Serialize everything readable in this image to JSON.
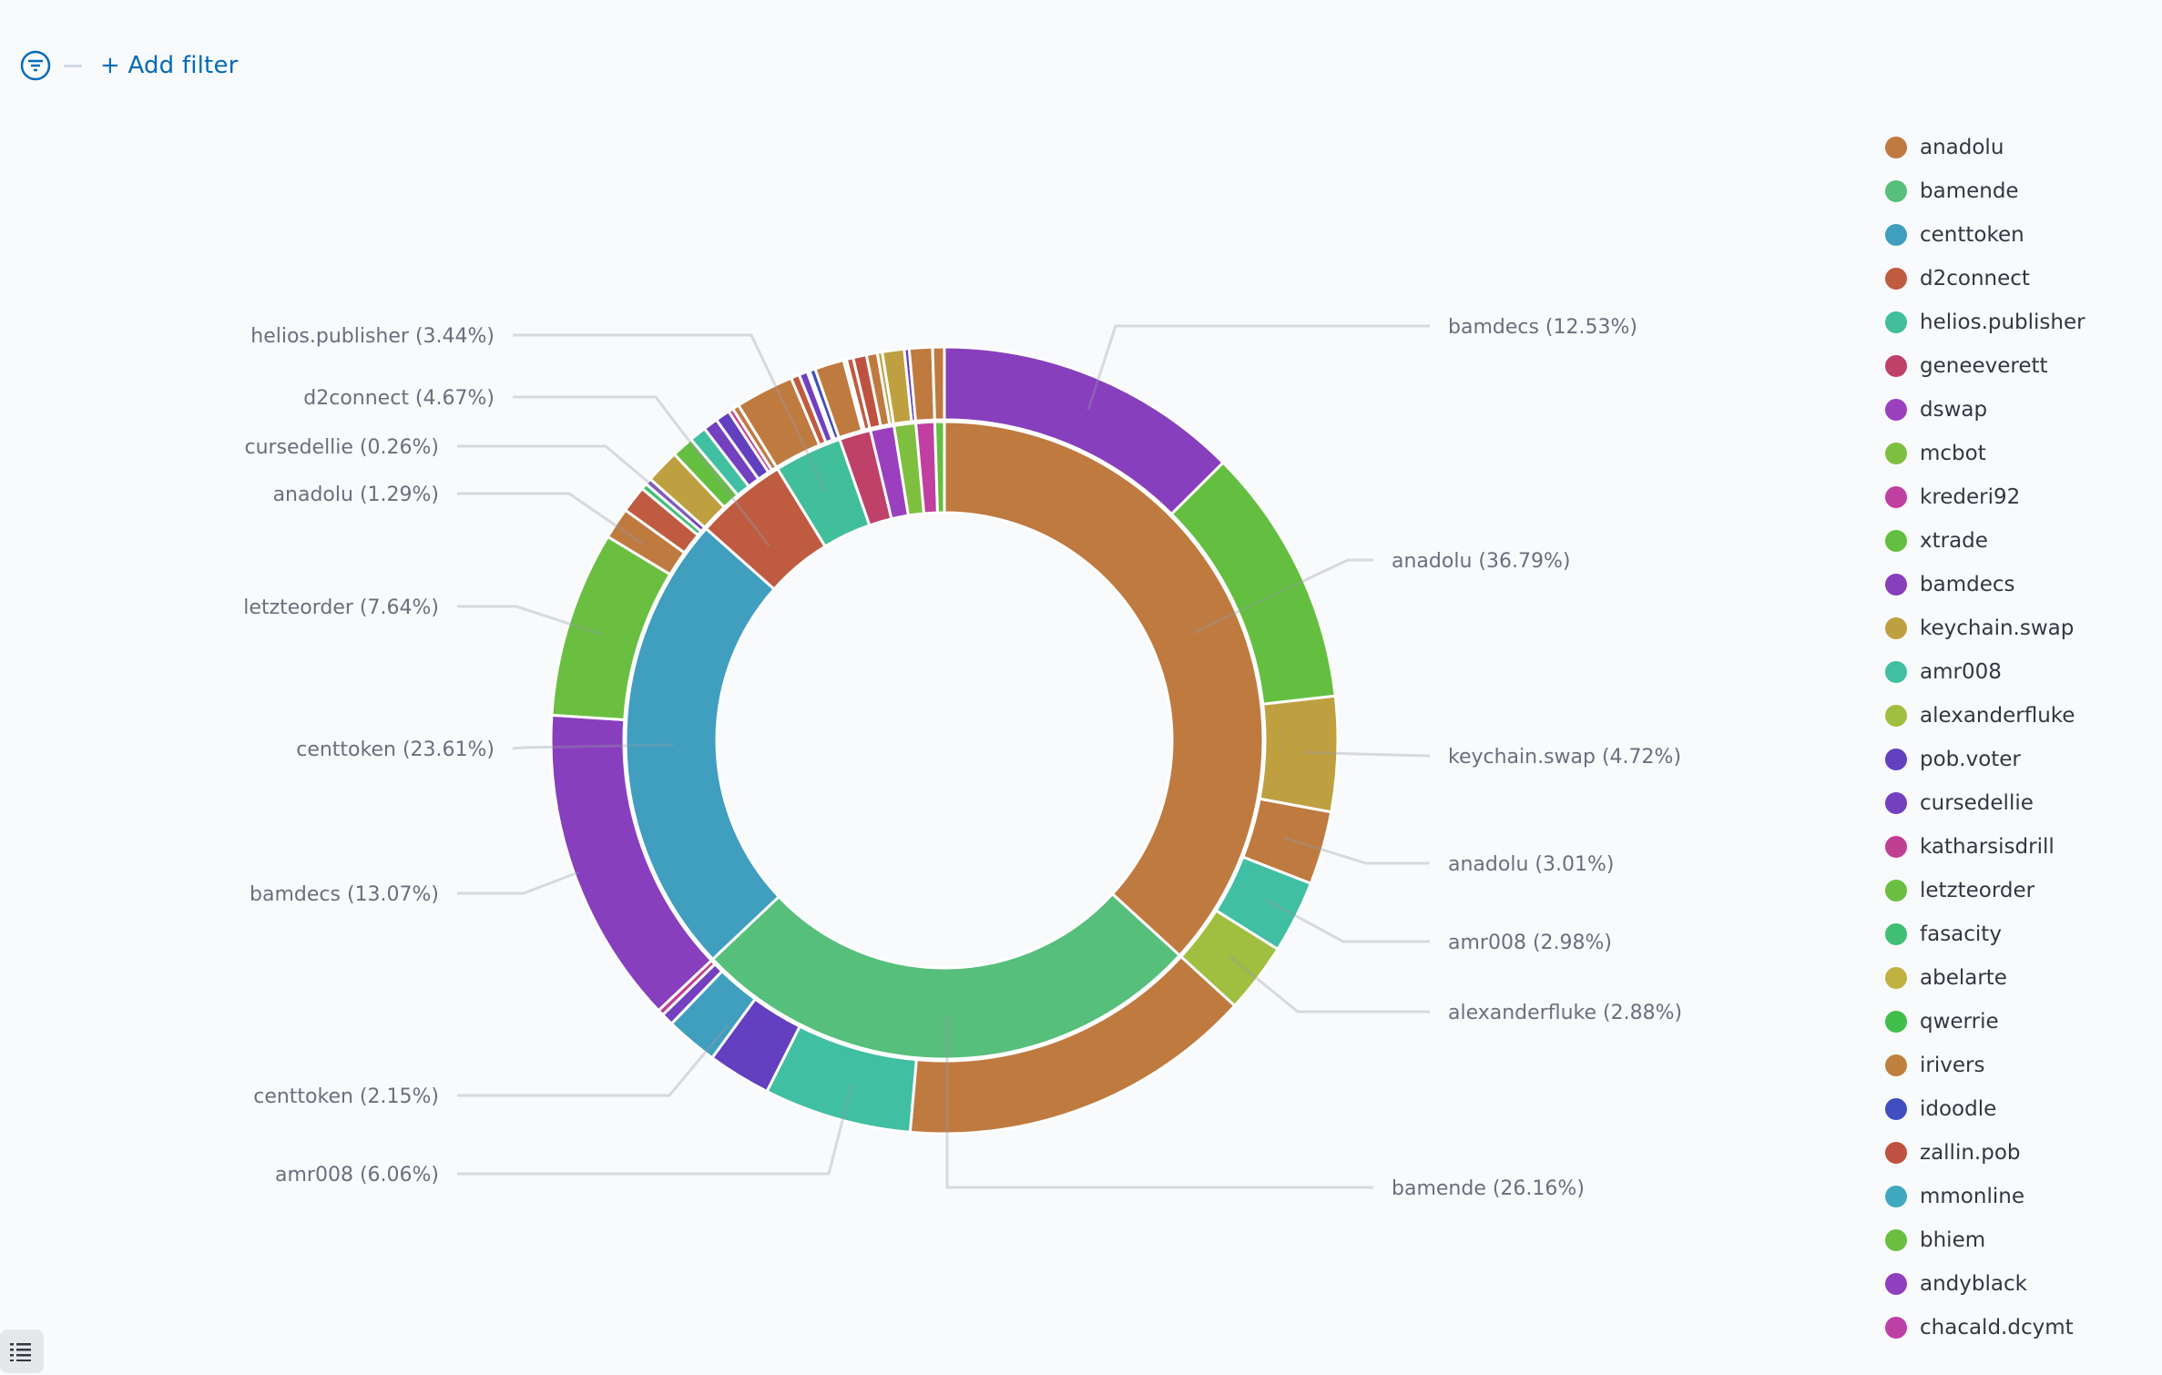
{
  "filter_bar": {
    "add_filter_label": "+ Add filter",
    "accent_color": "#006bb8"
  },
  "legend": {
    "items": [
      {
        "label": "anadolu",
        "color": "#bf7a40"
      },
      {
        "label": "bamende",
        "color": "#56bf7b"
      },
      {
        "label": "centtoken",
        "color": "#409ebf"
      },
      {
        "label": "d2connect",
        "color": "#bf5b40"
      },
      {
        "label": "helios.publisher",
        "color": "#40bf9a"
      },
      {
        "label": "geneeverett",
        "color": "#bf4069"
      },
      {
        "label": "dswap",
        "color": "#9a40bf"
      },
      {
        "label": "mcbot",
        "color": "#7fbf40"
      },
      {
        "label": "krederi92",
        "color": "#bf40a0"
      },
      {
        "label": "xtrade",
        "color": "#64bf40"
      },
      {
        "label": "bamdecs",
        "color": "#873fbd"
      },
      {
        "label": "keychain.swap",
        "color": "#bfa040"
      },
      {
        "label": "amr008",
        "color": "#40bfa2"
      },
      {
        "label": "alexanderfluke",
        "color": "#a0bf40"
      },
      {
        "label": "pob.voter",
        "color": "#6240bf"
      },
      {
        "label": "cursedellie",
        "color": "#7340bf"
      },
      {
        "label": "katharsisdrill",
        "color": "#bf4092"
      },
      {
        "label": "letzteorder",
        "color": "#6abf40"
      },
      {
        "label": "fasacity",
        "color": "#40bf75"
      },
      {
        "label": "abelarte",
        "color": "#bfb240"
      },
      {
        "label": "qwerrie",
        "color": "#40bf4a"
      },
      {
        "label": "irivers",
        "color": "#bf8040"
      },
      {
        "label": "idoodle",
        "color": "#404ebf"
      },
      {
        "label": "zallin.pob",
        "color": "#bf5140"
      },
      {
        "label": "mmonline",
        "color": "#40a9bf"
      },
      {
        "label": "bhiem",
        "color": "#6bbf40"
      },
      {
        "label": "andyblack",
        "color": "#8f40bf"
      },
      {
        "label": "chacald.dcymt",
        "color": "#bf40a4"
      }
    ]
  },
  "chart_data": {
    "type": "pie",
    "subtype": "nested-donut",
    "title": "",
    "legend_position": "right",
    "inner_ring": [
      {
        "label": "anadolu",
        "value": 36.79,
        "children": [
          {
            "label": "bamdecs",
            "value": 12.53
          },
          {
            "label": "xtrade",
            "value": 10.67
          },
          {
            "label": "keychain.swap",
            "value": 4.72
          },
          {
            "label": "anadolu",
            "value": 3.01
          },
          {
            "label": "amr008",
            "value": 2.98
          },
          {
            "label": "alexanderfluke",
            "value": 2.88
          }
        ]
      },
      {
        "label": "bamende",
        "value": 26.16,
        "children": [
          {
            "label": "anadolu",
            "value": 14.6
          },
          {
            "label": "amr008",
            "value": 6.06
          },
          {
            "label": "pob.voter",
            "value": 2.6
          },
          {
            "label": "centtoken",
            "value": 2.15
          },
          {
            "label": "cursedellie",
            "value": 0.5
          },
          {
            "label": "katharsisdrill",
            "value": 0.25
          }
        ]
      },
      {
        "label": "centtoken",
        "value": 23.61,
        "children": [
          {
            "label": "bamdecs",
            "value": 13.07
          },
          {
            "label": "letzteorder",
            "value": 7.64
          },
          {
            "label": "anadolu",
            "value": 1.29
          },
          {
            "label": "d2connect",
            "value": 1.1
          },
          {
            "label": "fasacity",
            "value": 0.25
          },
          {
            "label": "cursedellie",
            "value": 0.26
          }
        ]
      },
      {
        "label": "d2connect",
        "value": 4.67,
        "children": [
          {
            "label": "keychain.swap",
            "value": 1.4
          },
          {
            "label": "xtrade",
            "value": 0.9
          },
          {
            "label": "amr008",
            "value": 0.7
          },
          {
            "label": "cursedellie",
            "value": 0.6
          },
          {
            "label": "pob.voter",
            "value": 0.6
          },
          {
            "label": "katharsisdrill",
            "value": 0.2
          },
          {
            "label": "anadolu",
            "value": 0.27
          }
        ]
      },
      {
        "label": "helios.publisher",
        "value": 3.44,
        "children": [
          {
            "label": "anadolu",
            "value": 2.4
          },
          {
            "label": "d2connect",
            "value": 0.35
          },
          {
            "label": "cursedellie",
            "value": 0.35
          },
          {
            "label": "qwerrie",
            "value": 0.1
          },
          {
            "label": "idoodle",
            "value": 0.24
          }
        ]
      },
      {
        "label": "geneeverett",
        "value": 1.6,
        "children": [
          {
            "label": "anadolu",
            "value": 1.2
          },
          {
            "label": "xtrade",
            "value": 0.12
          },
          {
            "label": "d2connect",
            "value": 0.28
          }
        ]
      },
      {
        "label": "dswap",
        "value": 1.2,
        "children": [
          {
            "label": "zallin.pob",
            "value": 0.55
          },
          {
            "label": "anadolu",
            "value": 0.45
          },
          {
            "label": "keychain.swap",
            "value": 0.2
          }
        ]
      },
      {
        "label": "mcbot",
        "value": 1.1,
        "children": [
          {
            "label": "keychain.swap",
            "value": 0.9
          },
          {
            "label": "pob.voter",
            "value": 0.2
          }
        ]
      },
      {
        "label": "krederi92",
        "value": 0.95,
        "children": [
          {
            "label": "anadolu",
            "value": 0.95
          }
        ]
      },
      {
        "label": "xtrade",
        "value": 0.48,
        "children": [
          {
            "label": "anadolu",
            "value": 0.48
          }
        ]
      }
    ],
    "annotations": [
      {
        "text": "bamdecs (12.53%)",
        "side": "right"
      },
      {
        "text": "anadolu (36.79%)",
        "side": "right"
      },
      {
        "text": "keychain.swap (4.72%)",
        "side": "right"
      },
      {
        "text": "anadolu (3.01%)",
        "side": "right"
      },
      {
        "text": "amr008 (2.98%)",
        "side": "right"
      },
      {
        "text": "alexanderfluke (2.88%)",
        "side": "right"
      },
      {
        "text": "bamende (26.16%)",
        "side": "right"
      },
      {
        "text": "helios.publisher (3.44%)",
        "side": "left"
      },
      {
        "text": "d2connect (4.67%)",
        "side": "left"
      },
      {
        "text": "cursedellie (0.26%)",
        "side": "left"
      },
      {
        "text": "anadolu (1.29%)",
        "side": "left"
      },
      {
        "text": "letzteorder (7.64%)",
        "side": "left"
      },
      {
        "text": "centtoken (23.61%)",
        "side": "left"
      },
      {
        "text": "bamdecs (13.07%)",
        "side": "left"
      },
      {
        "text": "centtoken (2.15%)",
        "side": "left"
      },
      {
        "text": "amr008 (6.06%)",
        "side": "left"
      }
    ]
  }
}
